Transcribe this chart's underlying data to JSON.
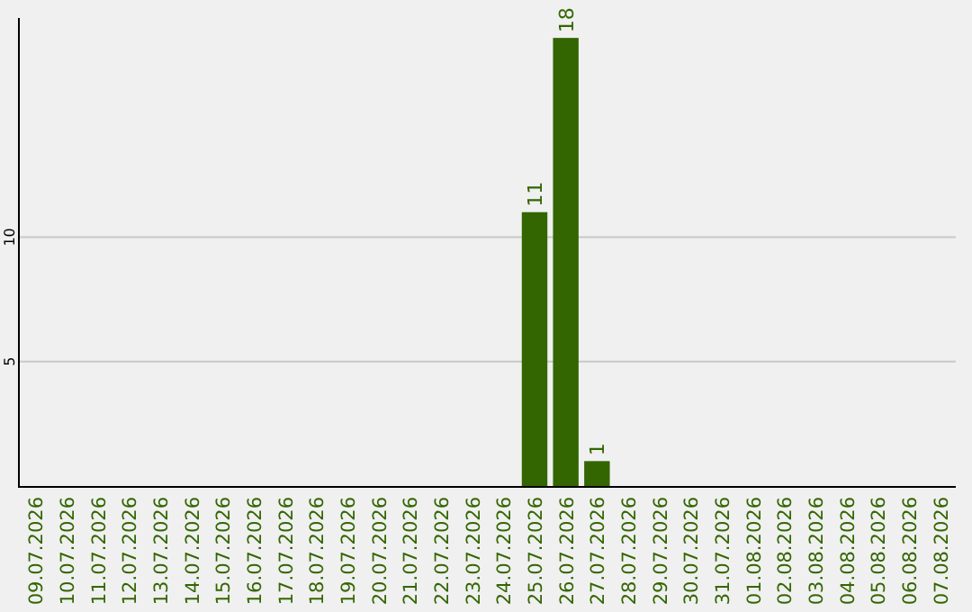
{
  "chart_data": {
    "type": "bar",
    "categories": [
      "09.07.2026",
      "10.07.2026",
      "11.07.2026",
      "12.07.2026",
      "13.07.2026",
      "14.07.2026",
      "15.07.2026",
      "16.07.2026",
      "17.07.2026",
      "18.07.2026",
      "19.07.2026",
      "20.07.2026",
      "21.07.2026",
      "22.07.2026",
      "23.07.2026",
      "24.07.2026",
      "25.07.2026",
      "26.07.2026",
      "27.07.2026",
      "28.07.2026",
      "29.07.2026",
      "30.07.2026",
      "31.07.2026",
      "01.08.2026",
      "02.08.2026",
      "03.08.2026",
      "04.08.2026",
      "05.08.2026",
      "06.08.2026",
      "07.08.2026"
    ],
    "values": [
      0,
      0,
      0,
      0,
      0,
      0,
      0,
      0,
      0,
      0,
      0,
      0,
      0,
      0,
      0,
      0,
      11,
      18,
      1,
      0,
      0,
      0,
      0,
      0,
      0,
      0,
      0,
      0,
      0,
      0
    ],
    "value_labels": [
      null,
      null,
      null,
      null,
      null,
      null,
      null,
      null,
      null,
      null,
      null,
      null,
      null,
      null,
      null,
      null,
      "11",
      "18",
      "1",
      null,
      null,
      null,
      null,
      null,
      null,
      null,
      null,
      null,
      null,
      null
    ],
    "color": "#336600",
    "ylim": [
      0,
      18.8
    ],
    "yticks": [
      5,
      10
    ],
    "grid": "y"
  }
}
